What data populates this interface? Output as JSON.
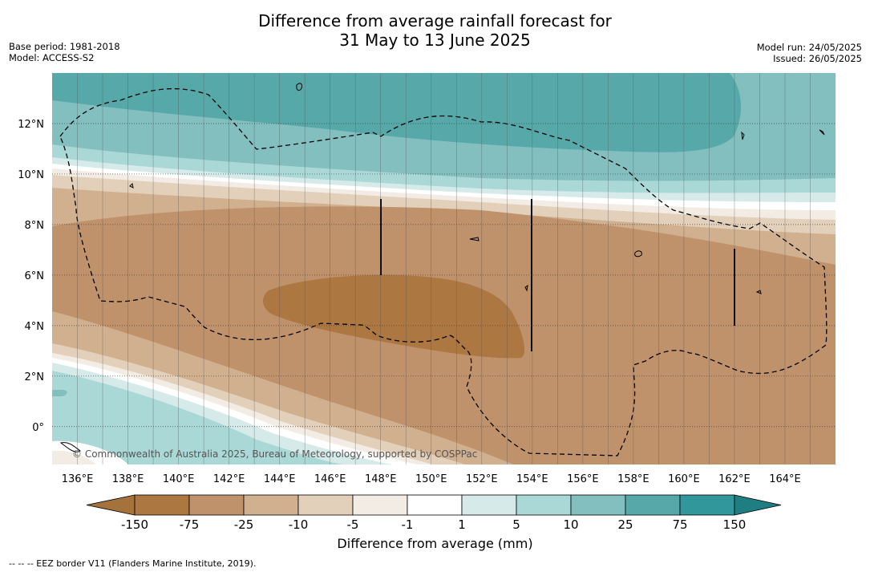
{
  "title": {
    "line1": "Difference from average rainfall forecast for",
    "line2": "31 May to 13 June 2025"
  },
  "meta_left": {
    "base_period": "Base period: 1981-2018",
    "model": "Model: ACCESS-S2"
  },
  "meta_right": {
    "model_run": "Model run: 24/05/2025",
    "issued": "Issued: 26/05/2025"
  },
  "map": {
    "lat_labels": [
      "12°N",
      "10°N",
      "8°N",
      "6°N",
      "4°N",
      "2°N",
      "0°"
    ],
    "lat_values": [
      12,
      10,
      8,
      6,
      4,
      2,
      0
    ],
    "lon_labels": [
      "136°E",
      "138°E",
      "140°E",
      "142°E",
      "144°E",
      "146°E",
      "148°E",
      "150°E",
      "152°E",
      "154°E",
      "156°E",
      "158°E",
      "160°E",
      "162°E",
      "164°E"
    ],
    "lon_values": [
      136,
      138,
      140,
      142,
      144,
      146,
      148,
      150,
      152,
      154,
      156,
      158,
      160,
      162,
      164
    ],
    "lon_range": [
      135,
      166
    ],
    "lat_range": [
      -1.5,
      14
    ],
    "copyright": "© Commonwealth of Australia 2025, Bureau of Meteorology, supported by COSPPac",
    "colors": {
      "lt_minus150": "#a5723b",
      "m150_m75": "#ad7742",
      "m75_m25": "#bf926b",
      "m25_m10": "#d1b08f",
      "m10_m5": "#e3d0bb",
      "m5_m1": "#f2ece4",
      "m1_1": "#ffffff",
      "p1_5": "#d6ebe9",
      "p5_10": "#aad8d6",
      "p10_25": "#82bfbe",
      "p25_75": "#57a9a9",
      "p75_150": "#32979a",
      "gt_150": "#1f7e82"
    }
  },
  "legend": {
    "tick_labels": [
      "-150",
      "-75",
      "-25",
      "-10",
      "-5",
      "-1",
      "1",
      "5",
      "10",
      "25",
      "75",
      "150"
    ],
    "title": "Difference from average (mm)"
  },
  "footnote": "--  --  -- EEZ border V11 (Flanders Marine Institute, 2019)."
}
